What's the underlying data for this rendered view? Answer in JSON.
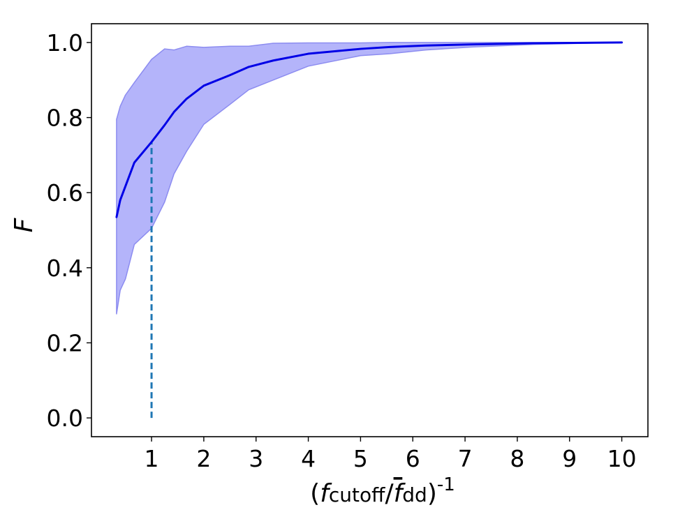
{
  "chart_data": {
    "type": "line",
    "title": "",
    "xlabel": {
      "paren_open": "(",
      "f1": "f",
      "sub1": "cutoff",
      "slash": "/",
      "f2": "f",
      "sub2": "dd",
      "paren_close": ")",
      "exponent": "-1"
    },
    "ylabel": "F",
    "xlim": [
      -0.15,
      10.5
    ],
    "ylim": [
      -0.05,
      1.05
    ],
    "xticks": [
      1,
      2,
      3,
      4,
      5,
      6,
      7,
      8,
      9,
      10
    ],
    "yticks": [
      0.0,
      0.2,
      0.4,
      0.6,
      0.8,
      1.0
    ],
    "ytick_labels": [
      "0.0",
      "0.2",
      "0.4",
      "0.6",
      "0.8",
      "1.0"
    ],
    "grid": false,
    "series": [
      {
        "kind": "line",
        "color": "#0000e6",
        "x": [
          0.33,
          0.4,
          0.67,
          1.0,
          1.25,
          1.43,
          1.67,
          2.0,
          2.5,
          2.86,
          3.33,
          4.0,
          5.0,
          5.56,
          6.25,
          7.14,
          8.33,
          10.0
        ],
        "y": [
          0.535,
          0.58,
          0.68,
          0.735,
          0.78,
          0.815,
          0.85,
          0.885,
          0.913,
          0.935,
          0.952,
          0.97,
          0.983,
          0.988,
          0.992,
          0.995,
          0.998,
          1.0
        ]
      },
      {
        "kind": "band",
        "color": "#b0b0fa",
        "edge_color": "#8c8cf0",
        "x": [
          0.33,
          0.4,
          0.5,
          0.67,
          1.0,
          1.25,
          1.43,
          1.67,
          2.0,
          2.5,
          2.86,
          3.33,
          4.0,
          5.0,
          5.56,
          6.25,
          7.14,
          8.33,
          10.0
        ],
        "upper": [
          0.795,
          0.83,
          0.86,
          0.893,
          0.955,
          0.983,
          0.98,
          0.99,
          0.987,
          0.99,
          0.99,
          0.998,
          0.999,
          0.999,
          1.0,
          1.0,
          1.0,
          1.0,
          1.0
        ],
        "lower": [
          0.277,
          0.34,
          0.37,
          0.462,
          0.505,
          0.575,
          0.65,
          0.71,
          0.782,
          0.835,
          0.874,
          0.9,
          0.937,
          0.965,
          0.97,
          0.98,
          0.988,
          0.995,
          1.0
        ]
      },
      {
        "kind": "vline",
        "color": "#1f77b4",
        "x": 1.0,
        "y": [
          0.0,
          0.735
        ]
      }
    ]
  }
}
